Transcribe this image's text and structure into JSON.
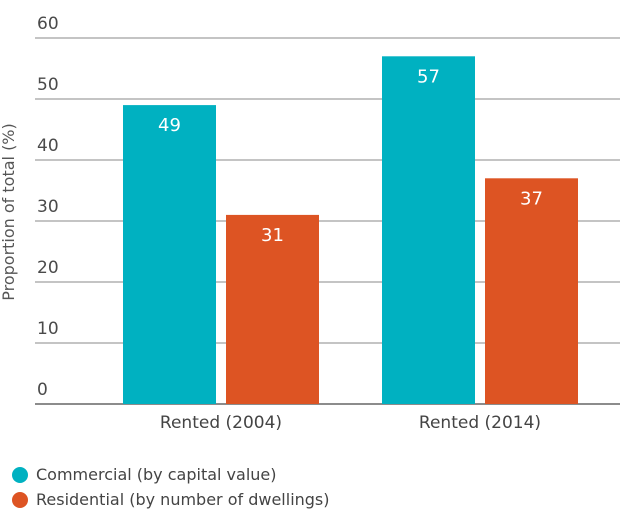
{
  "chart_data": {
    "type": "bar",
    "categories": [
      "Rented (2004)",
      "Rented (2014)"
    ],
    "series": [
      {
        "name": "Commercial (by capital value)",
        "values": [
          49,
          57
        ],
        "color": "#00b1c1"
      },
      {
        "name": "Residential (by number of dwellings)",
        "values": [
          31,
          37
        ],
        "color": "#dd5423"
      }
    ],
    "ylabel": "Proportion of total (%)",
    "ylim": [
      0,
      60
    ],
    "yticks": [
      0,
      10,
      20,
      30,
      40,
      50,
      60
    ],
    "grid": true,
    "legend_position": "bottom-left",
    "data_labels": true
  }
}
